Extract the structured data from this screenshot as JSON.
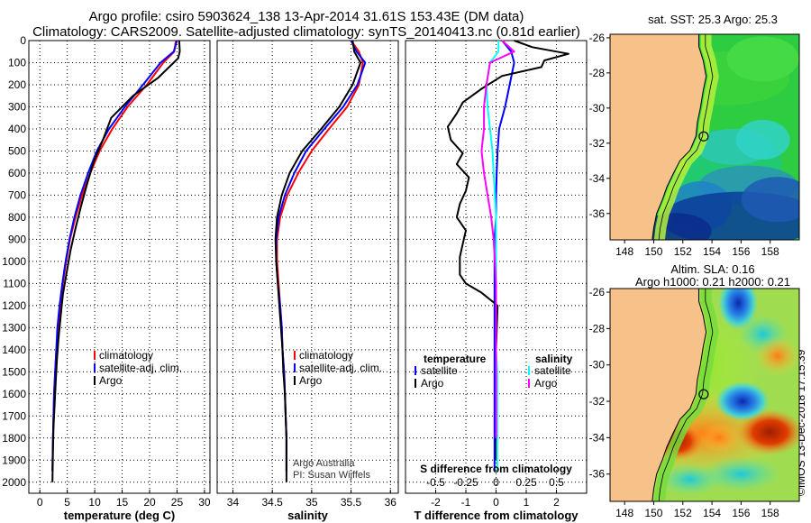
{
  "header": {
    "line1": "Argo profile: csiro 5903624_138 13-Apr-2014 31.61S 153.43E (DM data)",
    "line2": "Climatology: CARS2009. Satellite-adjusted climatology: synTS_20140413.nc (0.81d earlier)"
  },
  "colors": {
    "climatology": "#ff0000",
    "satellite": "#0000ff",
    "argo": "#000000",
    "s_satellite": "#00ffff",
    "s_argo": "#ff00ff",
    "land": "#f7c28a"
  },
  "chart_data": [
    {
      "type": "line",
      "id": "temperature",
      "xlabel": "temperature (deg C)",
      "ylabel": "",
      "xlim": [
        -2,
        31
      ],
      "ylim": [
        2050,
        0
      ],
      "xticks": [
        "0",
        "5",
        "10",
        "15",
        "20",
        "25",
        "30"
      ],
      "yticks": [
        "0",
        "100",
        "200",
        "300",
        "400",
        "500",
        "600",
        "700",
        "800",
        "900",
        "1000",
        "1100",
        "1200",
        "1300",
        "1400",
        "1500",
        "1600",
        "1700",
        "1800",
        "1900",
        "2000"
      ],
      "legend": [
        "climatology",
        "satellite-adj. clim.",
        "Argo"
      ],
      "series": [
        {
          "name": "climatology",
          "x": [
            24.8,
            24.5,
            22.5,
            19.5,
            16.0,
            13.2,
            10.9,
            9.2,
            7.7,
            6.5,
            5.5,
            4.8,
            4.2,
            3.7,
            3.3,
            3.0,
            2.8,
            2.6,
            2.5,
            2.4,
            2.3
          ],
          "depth": [
            0,
            50,
            100,
            200,
            300,
            400,
            500,
            600,
            700,
            800,
            900,
            1000,
            1100,
            1200,
            1300,
            1400,
            1500,
            1600,
            1700,
            1800,
            1950
          ]
        },
        {
          "name": "satellite-adj. clim.",
          "x": [
            25.0,
            24.4,
            22.0,
            18.8,
            15.5,
            12.6,
            10.4,
            8.8,
            7.4,
            6.3,
            5.4,
            4.7,
            4.1,
            3.6,
            3.2,
            3.0,
            2.8,
            2.6,
            2.5,
            2.4,
            2.3
          ],
          "depth": [
            0,
            50,
            100,
            200,
            300,
            400,
            500,
            600,
            700,
            800,
            900,
            1000,
            1100,
            1200,
            1300,
            1400,
            1500,
            1600,
            1700,
            1800,
            1950
          ]
        },
        {
          "name": "Argo",
          "x": [
            25.4,
            25.5,
            25.2,
            21.5,
            17.0,
            13.0,
            11.5,
            9.8,
            8.6,
            7.5,
            6.5,
            5.6,
            4.9,
            4.2,
            3.8,
            3.4,
            3.1,
            2.9,
            2.7,
            2.5,
            2.4,
            2.3
          ],
          "depth": [
            0,
            50,
            80,
            170,
            250,
            350,
            450,
            550,
            650,
            750,
            850,
            950,
            1050,
            1150,
            1250,
            1350,
            1450,
            1550,
            1650,
            1750,
            1850,
            2000
          ]
        }
      ]
    },
    {
      "type": "line",
      "id": "salinity",
      "xlabel": "salinity",
      "ylabel": "",
      "xlim": [
        33.8,
        36.1
      ],
      "ylim": [
        2050,
        0
      ],
      "xticks": [
        "34",
        "34.5",
        "35",
        "35.5",
        "36"
      ],
      "legend": [
        "climatology",
        "satellite-adj. clim.",
        "Argo"
      ],
      "annotation": [
        "Argo Australia",
        "PI: Susan Wijffels"
      ],
      "series": [
        {
          "name": "climatology",
          "x": [
            35.5,
            35.6,
            35.65,
            35.6,
            35.45,
            35.22,
            35.0,
            34.83,
            34.69,
            34.6,
            34.56,
            34.56,
            34.58,
            34.6,
            34.62,
            34.63,
            34.65,
            34.66,
            34.67,
            34.68,
            34.68
          ],
          "depth": [
            0,
            50,
            100,
            200,
            300,
            400,
            500,
            600,
            700,
            800,
            900,
            1000,
            1100,
            1200,
            1300,
            1400,
            1500,
            1600,
            1700,
            1800,
            1950
          ]
        },
        {
          "name": "satellite-adj. clim.",
          "x": [
            35.5,
            35.57,
            35.68,
            35.58,
            35.4,
            35.16,
            34.93,
            34.78,
            34.66,
            34.58,
            34.55,
            34.55,
            34.57,
            34.6,
            34.62,
            34.63,
            34.65,
            34.66,
            34.67,
            34.68,
            34.68
          ],
          "depth": [
            0,
            50,
            100,
            200,
            300,
            400,
            500,
            600,
            700,
            800,
            900,
            1000,
            1100,
            1200,
            1300,
            1400,
            1500,
            1600,
            1700,
            1800,
            1950
          ]
        },
        {
          "name": "Argo",
          "x": [
            35.52,
            35.54,
            35.62,
            35.52,
            35.35,
            35.12,
            34.88,
            34.72,
            34.62,
            34.56,
            34.54,
            34.55,
            34.57,
            34.59,
            34.61,
            34.63,
            34.64,
            34.66,
            34.67,
            34.68,
            34.68
          ],
          "depth": [
            0,
            50,
            100,
            200,
            300,
            400,
            500,
            600,
            700,
            800,
            900,
            1000,
            1100,
            1200,
            1300,
            1400,
            1500,
            1600,
            1700,
            1800,
            2000
          ]
        }
      ]
    },
    {
      "type": "line",
      "id": "difference",
      "xlabel": "T difference from climatology",
      "xlabel2": "S difference from climatology",
      "xlim": [
        -3,
        3
      ],
      "ylim": [
        2050,
        0
      ],
      "xticks": [
        "-2",
        "-1",
        "0",
        "1",
        "2"
      ],
      "xticks2": [
        "-0.5",
        "-0.25",
        "0",
        "0.25",
        "0.5"
      ],
      "legend_temperature": [
        "temperature",
        "satellite",
        "Argo"
      ],
      "legend_salinity": [
        "salinity",
        "satellite",
        "Argo"
      ],
      "series": [
        {
          "name": "T satellite",
          "x": [
            0.2,
            0.5,
            0.6,
            0.45,
            0.3,
            0.1,
            0.05,
            0.02,
            0,
            0,
            -0.05,
            -0.05,
            -0.05,
            -0.05,
            -0.05,
            -0.05,
            -0.05,
            -0.05,
            -0.05,
            -0.05,
            -0.05
          ],
          "depth": [
            0,
            50,
            100,
            200,
            300,
            400,
            500,
            600,
            700,
            800,
            900,
            1000,
            1100,
            1200,
            1300,
            1400,
            1500,
            1600,
            1700,
            1800,
            1950
          ]
        },
        {
          "name": "T Argo",
          "x": [
            0.6,
            1.2,
            2.4,
            1.6,
            1.5,
            0.2,
            -0.5,
            -1.1,
            -1.3,
            -1.6,
            -1.5,
            -1.1,
            -1.3,
            -0.9,
            -1.0,
            -1.2,
            -1.3,
            -1.0,
            -1.1,
            -1.2,
            -1.2,
            -1.2,
            -1.0,
            -0.5,
            0.05,
            0.0,
            0.0
          ],
          "depth": [
            0,
            30,
            60,
            90,
            120,
            160,
            220,
            280,
            330,
            390,
            450,
            510,
            560,
            620,
            680,
            740,
            800,
            860,
            920,
            980,
            1020,
            1060,
            1100,
            1140,
            1200,
            1400,
            1900
          ]
        },
        {
          "name": "S satellite",
          "x": [
            0.02,
            0.02,
            -0.05,
            -0.08,
            -0.07,
            -0.05,
            -0.03,
            -0.02,
            -0.01,
            0,
            0,
            0,
            0,
            0,
            0,
            0,
            0.01,
            0.01,
            0.01,
            0.01,
            0.01
          ],
          "depth": [
            0,
            50,
            100,
            200,
            300,
            400,
            500,
            600,
            700,
            800,
            900,
            1000,
            1100,
            1200,
            1300,
            1400,
            1500,
            1600,
            1700,
            1800,
            1950
          ]
        },
        {
          "name": "S Argo",
          "x": [
            0.05,
            0.15,
            -0.05,
            -0.08,
            -0.1,
            -0.1,
            -0.12,
            -0.1,
            -0.07,
            -0.04,
            -0.02,
            -0.01,
            0,
            0,
            0,
            0,
            0,
            0,
            0,
            0
          ],
          "depth": [
            0,
            50,
            100,
            200,
            300,
            400,
            500,
            600,
            700,
            800,
            900,
            1000,
            1100,
            1200,
            1300,
            1400,
            1500,
            1600,
            1700,
            1800
          ]
        }
      ]
    }
  ],
  "maps": {
    "sst": {
      "title": "sat. SST: 25.3 Argo: 25.3",
      "xticks": [
        "148",
        "150",
        "152",
        "154",
        "156",
        "158"
      ],
      "yticks": [
        "-26",
        "-28",
        "-30",
        "-32",
        "-34",
        "-36"
      ],
      "lon": [
        147,
        160
      ],
      "lat": [
        -37.5,
        -25.8
      ],
      "float_position": {
        "lon": 153.43,
        "lat": -31.61
      }
    },
    "sla": {
      "title_line1": "Altim. SLA: 0.16",
      "title_line2": "Argo h1000: 0.21 h2000: 0.21",
      "xticks": [
        "148",
        "150",
        "152",
        "154",
        "156",
        "158"
      ],
      "yticks": [
        "-26",
        "-28",
        "-30",
        "-32",
        "-34",
        "-36"
      ],
      "lon": [
        147,
        160
      ],
      "lat": [
        -37.5,
        -25.8
      ],
      "float_position": {
        "lon": 153.43,
        "lat": -31.61
      }
    }
  },
  "footer": {
    "stamp": "©IMOS 13-Dec-2018 17:15:39"
  }
}
